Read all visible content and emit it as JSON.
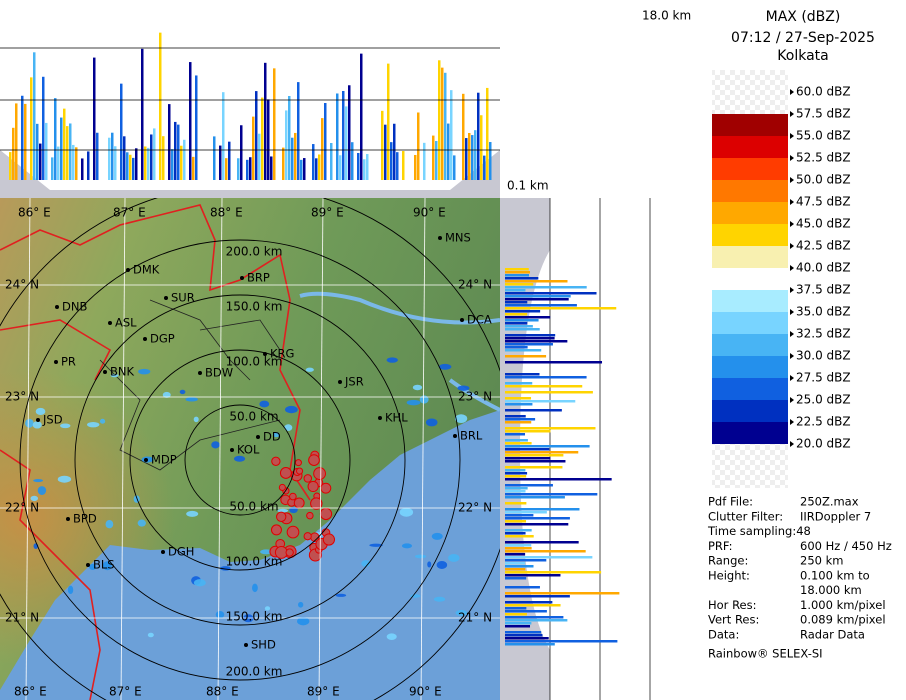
{
  "top_panel": {
    "height_top": "18.0 km",
    "height_bottom": "0.1 km"
  },
  "header": {
    "title": "MAX (dBZ)",
    "datetime": "07:12 / 27-Sep-2025",
    "station": "Kolkata"
  },
  "legend": [
    {
      "label": "60.0 dBZ",
      "color": null
    },
    {
      "label": "57.5 dBZ",
      "color": "#a00000"
    },
    {
      "label": "55.0 dBZ",
      "color": "#dc0000"
    },
    {
      "label": "52.5 dBZ",
      "color": "#ff3c00"
    },
    {
      "label": "50.0 dBZ",
      "color": "#ff7800"
    },
    {
      "label": "47.5 dBZ",
      "color": "#ffa800"
    },
    {
      "label": "45.0 dBZ",
      "color": "#ffd400"
    },
    {
      "label": "42.5 dBZ",
      "color": "#f8f0b0"
    },
    {
      "label": "40.0 dBZ",
      "color": "#ffffff"
    },
    {
      "label": "37.5 dBZ",
      "color": "#a8ecff"
    },
    {
      "label": "35.0 dBZ",
      "color": "#78d4ff"
    },
    {
      "label": "32.5 dBZ",
      "color": "#48b4f4"
    },
    {
      "label": "30.0 dBZ",
      "color": "#2490ec"
    },
    {
      "label": "27.5 dBZ",
      "color": "#1060e0"
    },
    {
      "label": "25.0 dBZ",
      "color": "#0030c0"
    },
    {
      "label": "22.5 dBZ",
      "color": "#000090"
    },
    {
      "label": "20.0 dBZ",
      "color": null
    }
  ],
  "map": {
    "longitudes": [
      "86° E",
      "87° E",
      "88° E",
      "89° E",
      "90° E"
    ],
    "latitudes": [
      "24° N",
      "23° N",
      "22° N",
      "21° N"
    ],
    "rings": [
      "50.0 km",
      "100.0 km",
      "150.0 km",
      "200.0 km"
    ],
    "cities": [
      "MNS",
      "DMK",
      "BRP",
      "SUR",
      "DNB",
      "ASL",
      "DCA",
      "DGP",
      "KRG",
      "PR",
      "BNK",
      "BDW",
      "JSR",
      "KHL",
      "JSD",
      "DD",
      "BRL",
      "MDP",
      "KOL",
      "BPD",
      "DGH",
      "BLS",
      "SHD"
    ]
  },
  "info": [
    {
      "key": "Pdf File:",
      "value": [
        "250Z.max"
      ]
    },
    {
      "key": "Clutter Filter:",
      "value": [
        "IIRDoppler 7"
      ]
    },
    {
      "key": "Time sampling:48",
      "value": []
    },
    {
      "key": "PRF:",
      "value": [
        "600 Hz / 450 Hz"
      ]
    },
    {
      "key": "Range:",
      "value": [
        "250 km"
      ]
    },
    {
      "key": "Height:",
      "value": [
        "0.100 km to",
        "18.000 km"
      ]
    },
    {
      "key": "Hor Res:",
      "value": [
        "1.000 km/pixel"
      ]
    },
    {
      "key": "Vert Res:",
      "value": [
        "0.089 km/pixel"
      ]
    },
    {
      "key": "Data:",
      "value": [
        "Radar Data"
      ]
    }
  ],
  "footer": "Rainbow® SELEX-SI"
}
